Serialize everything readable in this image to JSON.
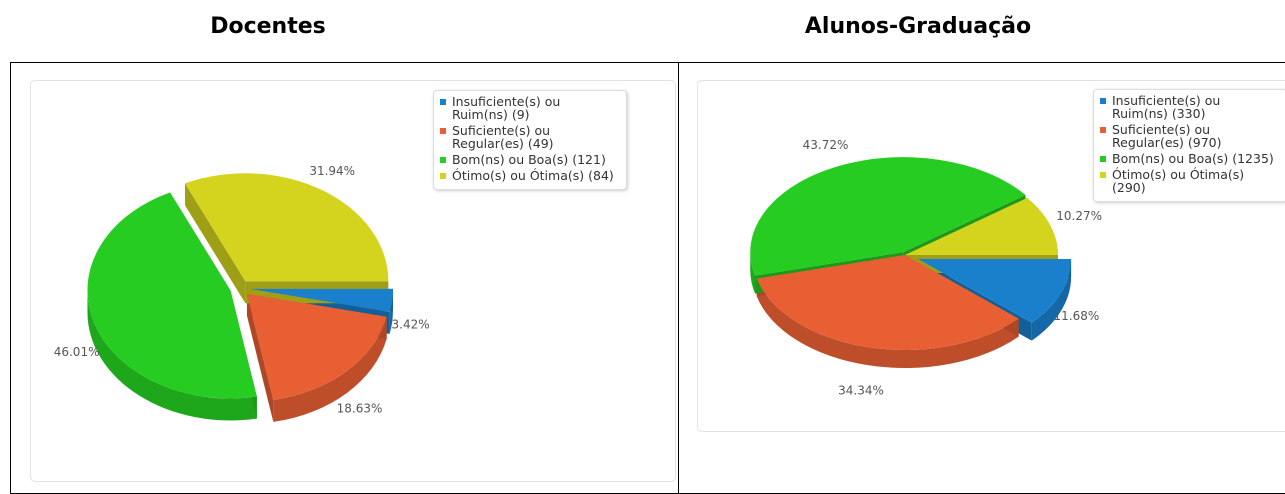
{
  "chart_data": [
    {
      "type": "pie",
      "title": "Docentes",
      "categories": [
        "Insuficiente(s) ou Ruim(ns) (9)",
        "Suficiente(s) ou Regular(es) (49)",
        "Bom(ns) ou Boa(s) (121)",
        "Ótimo(s) ou Ótima(s) (84)"
      ],
      "values": [
        3.42,
        18.63,
        46.01,
        31.94
      ],
      "value_labels": [
        "3.42%",
        "18.63%",
        "46.01%",
        "31.94%"
      ],
      "colors": [
        "#1a80cc",
        "#e85f33",
        "#26cc22",
        "#d4d41f"
      ],
      "legend": "top-right"
    },
    {
      "type": "pie",
      "title": "Alunos-Graduação",
      "categories": [
        "Insuficiente(s) ou Ruim(ns) (330)",
        "Suficiente(s) ou Regular(es) (970)",
        "Bom(ns) ou Boa(s) (1235)",
        "Ótimo(s) ou Ótima(s) (290)"
      ],
      "values": [
        11.68,
        34.34,
        43.72,
        10.27
      ],
      "value_labels": [
        "11.68%",
        "34.34%",
        "43.72%",
        "10.27%"
      ],
      "colors": [
        "#1a80cc",
        "#e85f33",
        "#26cc22",
        "#d4d41f"
      ],
      "legend": "top-right"
    }
  ]
}
